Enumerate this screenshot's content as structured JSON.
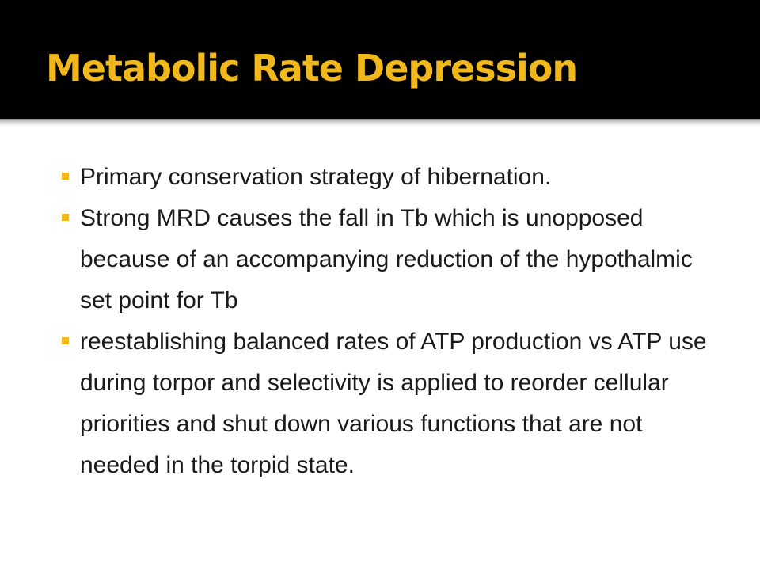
{
  "slide": {
    "title": "Metabolic Rate Depression",
    "accent_color": "#f0b81a",
    "header_background": "#000000",
    "bullet_icon": "square-bullet-icon",
    "bullets": [
      "Primary conservation strategy of hibernation.",
      "Strong MRD causes the fall in Tb which is unopposed because of an accompanying reduction of the hypothalmic set point for Tb",
      "reestablishing balanced rates of ATP production vs ATP use during torpor and selectivity is applied to reorder cellular priorities and shut down various functions that are not needed in the torpid state."
    ]
  }
}
